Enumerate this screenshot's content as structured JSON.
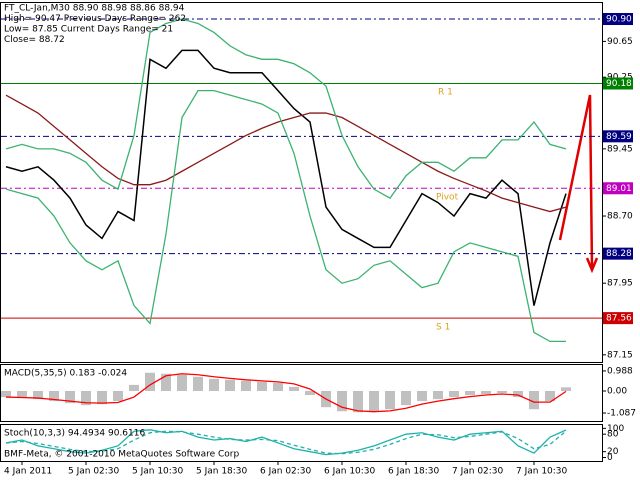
{
  "chart_data": [
    {
      "type": "line",
      "info": [
        "FT_CL-Jan,M30  88.90 88.98 88.86 88.94",
        "High= 90.47   Previous Days Range= 262",
        "Low= 87.85   Current Days Range= 21",
        "Close= 88.72"
      ],
      "categories": [
        null,
        "4 Jan 2011",
        null,
        null,
        null,
        "5 Jan 02:30",
        null,
        null,
        null,
        "5 Jan 10:30",
        null,
        null,
        null,
        "5 Jan 18:30",
        null,
        null,
        null,
        "6 Jan 02:30",
        null,
        null,
        null,
        "6 Jan 10:30",
        null,
        null,
        null,
        "6 Jan 18:30",
        null,
        null,
        null,
        "7 Jan 02:30",
        null,
        null,
        null,
        "7 Jan 10:30",
        null,
        null
      ],
      "series": [
        {
          "color": "#000000",
          "values": [
            89.25,
            89.2,
            89.25,
            89.1,
            88.9,
            88.6,
            88.45,
            88.75,
            88.65,
            90.45,
            90.35,
            90.55,
            90.55,
            90.35,
            90.3,
            90.3,
            90.3,
            90.1,
            89.9,
            89.75,
            88.8,
            88.55,
            88.45,
            88.35,
            88.35,
            88.65,
            88.95,
            88.85,
            88.7,
            88.95,
            88.9,
            89.1,
            88.95,
            87.7,
            88.4,
            88.95
          ]
        },
        {
          "color": "#8b1a1a",
          "values": [
            90.05,
            89.95,
            89.85,
            89.7,
            89.55,
            89.4,
            89.25,
            89.12,
            89.05,
            89.05,
            89.1,
            89.2,
            89.3,
            89.4,
            89.5,
            89.6,
            89.68,
            89.75,
            89.8,
            89.85,
            89.85,
            89.8,
            89.7,
            89.6,
            89.5,
            89.4,
            89.3,
            89.2,
            89.12,
            89.05,
            88.98,
            88.9,
            88.85,
            88.8,
            88.75,
            88.8
          ]
        },
        {
          "color": "#3cb371",
          "values": [
            89.45,
            89.5,
            89.45,
            89.45,
            89.4,
            89.3,
            89.1,
            89.0,
            89.6,
            90.75,
            90.85,
            90.9,
            90.85,
            90.75,
            90.6,
            90.5,
            90.45,
            90.45,
            90.4,
            90.3,
            90.15,
            89.6,
            89.25,
            89.0,
            88.9,
            89.15,
            89.3,
            89.3,
            89.2,
            89.35,
            89.35,
            89.55,
            89.55,
            89.75,
            89.5,
            89.45
          ]
        },
        {
          "color": "#3cb371",
          "values": [
            89.0,
            88.95,
            88.9,
            88.7,
            88.4,
            88.2,
            88.1,
            88.2,
            87.7,
            87.5,
            88.5,
            89.8,
            90.1,
            90.1,
            90.05,
            90.0,
            89.95,
            89.85,
            89.4,
            88.7,
            88.1,
            87.95,
            88.0,
            88.15,
            88.2,
            88.05,
            87.9,
            87.95,
            88.3,
            88.4,
            88.35,
            88.3,
            88.25,
            87.4,
            87.3,
            87.3
          ]
        }
      ],
      "ylim": [
        87.07,
        91.09
      ],
      "yticks": [
        87.15,
        87.95,
        {
          "value": 88.7,
          "label": "88.70"
        },
        89.45,
        90.25,
        90.65
      ],
      "levels": [
        {
          "value": 90.9,
          "label": "90.90",
          "color": "#000080",
          "dashed": true
        },
        {
          "value": 90.18,
          "label": "90.18",
          "color": "#008000",
          "dashed": false
        },
        {
          "value": 89.59,
          "label": "89.59",
          "color": "#000080",
          "dashed": true
        },
        {
          "value": 89.01,
          "label": "89.01",
          "color": "#c000c0",
          "dashed": true
        },
        {
          "value": 88.28,
          "label": "88.28",
          "color": "#000080",
          "dashed": true
        },
        {
          "value": 87.56,
          "label": "87.56",
          "color": "#cc0000",
          "dashed": false
        }
      ],
      "annotations": [
        "R 1",
        "Pivot",
        "S 1"
      ]
    },
    {
      "type": "bar",
      "title": "MACD(5,35,5) 0.183 -0.024",
      "series": [
        {
          "color": "#c0c0c0",
          "values": [
            -0.3,
            -0.35,
            -0.4,
            -0.5,
            -0.6,
            -0.7,
            -0.65,
            -0.5,
            0.3,
            0.9,
            0.85,
            0.8,
            0.7,
            0.6,
            0.55,
            0.5,
            0.45,
            0.4,
            0.2,
            -0.2,
            -0.8,
            -1.0,
            -1.05,
            -1.0,
            -0.9,
            -0.7,
            -0.5,
            -0.4,
            -0.3,
            -0.2,
            -0.15,
            -0.1,
            -0.3,
            -0.9,
            -0.5,
            0.18
          ]
        },
        {
          "color": "#ff0000",
          "type": "line",
          "values": [
            -0.3,
            -0.32,
            -0.35,
            -0.42,
            -0.5,
            -0.58,
            -0.6,
            -0.57,
            -0.3,
            0.3,
            0.75,
            0.85,
            0.8,
            0.7,
            0.62,
            0.55,
            0.5,
            0.45,
            0.35,
            0.1,
            -0.4,
            -0.8,
            -0.98,
            -1.02,
            -0.98,
            -0.85,
            -0.65,
            -0.5,
            -0.38,
            -0.28,
            -0.2,
            -0.15,
            -0.2,
            -0.55,
            -0.55,
            -0.02
          ]
        }
      ],
      "ylim": [
        -1.48,
        1.33
      ],
      "yticks": [
        0.988,
        {
          "value": 0,
          "label": "0.00"
        },
        -1.087
      ]
    },
    {
      "type": "line",
      "title": "Stoch(10,3,3) 94.4934 90.6116",
      "footer": "BMF-Meta, © 2001-2010 MetaQuotes Software Corp",
      "series": [
        {
          "color": "#20b2aa",
          "values": [
            50,
            60,
            40,
            30,
            20,
            15,
            25,
            40,
            90,
            95,
            85,
            90,
            70,
            60,
            65,
            55,
            70,
            50,
            30,
            20,
            10,
            15,
            25,
            40,
            60,
            80,
            85,
            70,
            60,
            80,
            85,
            90,
            40,
            15,
            70,
            94.5
          ]
        },
        {
          "color": "#20b2aa",
          "dashed": true,
          "values": [
            50,
            55,
            48,
            38,
            28,
            20,
            22,
            30,
            60,
            85,
            90,
            88,
            80,
            70,
            62,
            60,
            62,
            58,
            42,
            28,
            15,
            13,
            18,
            28,
            45,
            65,
            80,
            78,
            68,
            72,
            80,
            88,
            65,
            30,
            45,
            90.6
          ]
        }
      ],
      "ylim": [
        -12,
        115
      ],
      "yticks": [
        100,
        80,
        20,
        0
      ]
    }
  ]
}
